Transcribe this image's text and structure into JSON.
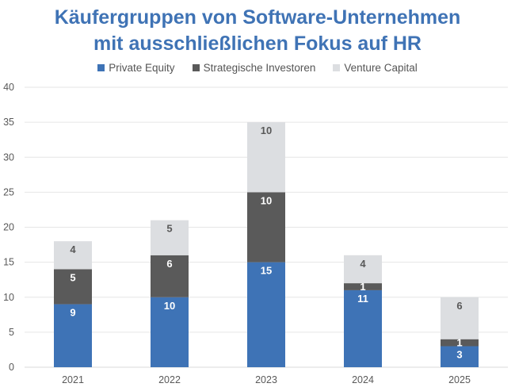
{
  "chart_data": {
    "type": "bar",
    "stacked": true,
    "title": "Käufergruppen von Software-Unternehmen mit ausschließlichen Fokus auf HR",
    "title_lines": [
      "Käufergruppen von Software-Unternehmen",
      "mit ausschließlichen Fokus auf HR"
    ],
    "xlabel": "",
    "ylabel": "",
    "categories": [
      "2021",
      "2022",
      "2023",
      "2024",
      "2025"
    ],
    "series": [
      {
        "name": "Private Equity",
        "color": "#3e73b6",
        "label_color": "#ffffff",
        "values": [
          9,
          10,
          15,
          11,
          3
        ]
      },
      {
        "name": "Strategische Investoren",
        "color": "#5a5a5a",
        "label_color": "#ffffff",
        "values": [
          5,
          6,
          10,
          1,
          1
        ]
      },
      {
        "name": "Venture Capital",
        "color": "#dcdee1",
        "label_color": "#595959",
        "values": [
          4,
          5,
          10,
          4,
          6
        ]
      }
    ],
    "ylim": [
      0,
      40
    ],
    "yticks": [
      0,
      5,
      10,
      15,
      20,
      25,
      30,
      35,
      40
    ],
    "grid": true,
    "legend_position": "top",
    "data_labels": true
  }
}
